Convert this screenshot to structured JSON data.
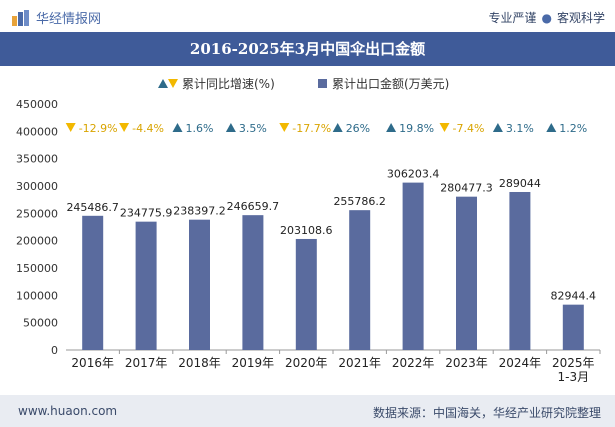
{
  "header": {
    "brand": "华经情报网",
    "tagline_left": "专业严谨",
    "tagline_right": "客观科学"
  },
  "footer": {
    "website": "www.huaon.com",
    "source": "数据来源：中国海关，华经产业研究院整理"
  },
  "colors": {
    "bar": "#5a6b9e",
    "title_bg": "#3f5b99",
    "growth_up": "#2e6b8a",
    "growth_down": "#f2b800"
  },
  "chart_data": {
    "type": "bar",
    "title": "2016-2025年3月中国伞出口金额",
    "categories": [
      "2016年",
      "2017年",
      "2018年",
      "2019年",
      "2020年",
      "2021年",
      "2022年",
      "2023年",
      "2024年",
      "2025年\n1-3月"
    ],
    "series": [
      {
        "name": "累计出口金额(万美元)",
        "type": "bar",
        "values": [
          245486.7,
          234775.9,
          238397.2,
          246659.7,
          203108.6,
          255786.2,
          306203.4,
          280477.3,
          289044,
          82944.4
        ],
        "value_labels": [
          "245486.7",
          "234775.9",
          "238397.2",
          "246659.7",
          "203108.6",
          "255786.2",
          "306203.4",
          "280477.3",
          "289044",
          "82944.4"
        ]
      },
      {
        "name": "累计同比增速(%)",
        "type": "marker",
        "values": [
          -12.9,
          -4.4,
          1.6,
          3.5,
          -17.7,
          26,
          19.8,
          -7.4,
          3.1,
          1.2
        ],
        "value_labels": [
          "-12.9%",
          "-4.4%",
          "1.6%",
          "3.5%",
          "-17.7%",
          "26%",
          "19.8%",
          "-7.4%",
          "3.1%",
          "1.2%"
        ]
      }
    ],
    "y_ticks": [
      "0",
      "50000",
      "100000",
      "150000",
      "200000",
      "250000",
      "300000",
      "350000",
      "400000",
      "450000"
    ],
    "ylim": [
      0,
      450000
    ],
    "legend_position": "top-center",
    "grid": false
  }
}
